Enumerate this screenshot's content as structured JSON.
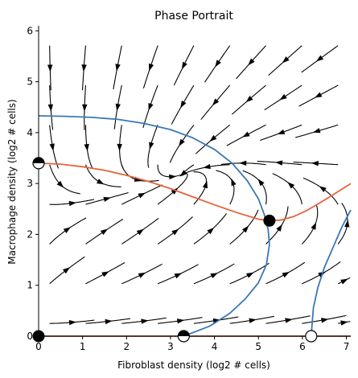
{
  "chart_data": {
    "type": "phase-portrait",
    "title": "Phase Portrait",
    "xlabel": "Fibroblast density (log2 # cells)",
    "ylabel": "Macrophage density (log2 # cells)",
    "xlim": [
      0,
      7.1
    ],
    "ylim": [
      0,
      6.1
    ],
    "xticks": [
      0,
      1,
      2,
      3,
      4,
      5,
      6,
      7
    ],
    "yticks": [
      0,
      1,
      2,
      3,
      4,
      5,
      6
    ],
    "grid": false,
    "colors": {
      "streamline": "#000000",
      "fibroblast_nullcline": "#3a78b5",
      "macrophage_nullcline": "#e5643a",
      "x_axis_nullcline": "#a23b1e"
    },
    "nullclines": [
      {
        "color_key": "fibroblast_nullcline",
        "points": [
          [
            0.0,
            4.33
          ],
          [
            0.6,
            4.32
          ],
          [
            1.2,
            4.3
          ],
          [
            1.8,
            4.26
          ],
          [
            2.4,
            4.18
          ],
          [
            3.0,
            4.06
          ],
          [
            3.5,
            3.9
          ],
          [
            4.0,
            3.67
          ],
          [
            4.4,
            3.4
          ],
          [
            4.75,
            3.05
          ],
          [
            5.0,
            2.7
          ],
          [
            5.13,
            2.4
          ],
          [
            5.22,
            2.1
          ],
          [
            5.25,
            1.8
          ],
          [
            5.18,
            1.4
          ],
          [
            5.0,
            1.05
          ],
          [
            4.7,
            0.73
          ],
          [
            4.35,
            0.45
          ],
          [
            3.9,
            0.2
          ],
          [
            3.3,
            0.0
          ]
        ]
      },
      {
        "color_key": "fibroblast_nullcline",
        "points": [
          [
            6.2,
            0.0
          ],
          [
            6.25,
            0.55
          ],
          [
            6.35,
            0.95
          ],
          [
            6.5,
            1.35
          ],
          [
            6.7,
            1.75
          ],
          [
            6.9,
            2.15
          ],
          [
            7.1,
            2.48
          ]
        ]
      },
      {
        "color_key": "macrophage_nullcline",
        "points": [
          [
            0.0,
            3.4
          ],
          [
            0.5,
            3.38
          ],
          [
            1.0,
            3.33
          ],
          [
            1.5,
            3.26
          ],
          [
            2.0,
            3.16
          ],
          [
            2.5,
            3.04
          ],
          [
            3.0,
            2.9
          ],
          [
            3.5,
            2.74
          ],
          [
            4.0,
            2.58
          ],
          [
            4.5,
            2.43
          ],
          [
            5.0,
            2.3
          ],
          [
            5.25,
            2.27
          ],
          [
            5.5,
            2.28
          ],
          [
            5.8,
            2.35
          ],
          [
            6.1,
            2.47
          ],
          [
            6.4,
            2.62
          ],
          [
            6.7,
            2.78
          ],
          [
            7.1,
            3.0
          ]
        ]
      },
      {
        "color_key": "x_axis_nullcline",
        "points": [
          [
            0.0,
            0.0
          ],
          [
            7.1,
            0.0
          ]
        ]
      }
    ],
    "fixed_points": [
      {
        "x": 0.0,
        "y": 0.0,
        "type": "stable"
      },
      {
        "x": 5.25,
        "y": 2.27,
        "type": "stable"
      },
      {
        "x": 3.3,
        "y": 0.0,
        "type": "semi-stable"
      },
      {
        "x": 0.0,
        "y": 3.4,
        "type": "semi-stable"
      },
      {
        "x": 6.2,
        "y": 0.0,
        "type": "unstable"
      }
    ]
  }
}
